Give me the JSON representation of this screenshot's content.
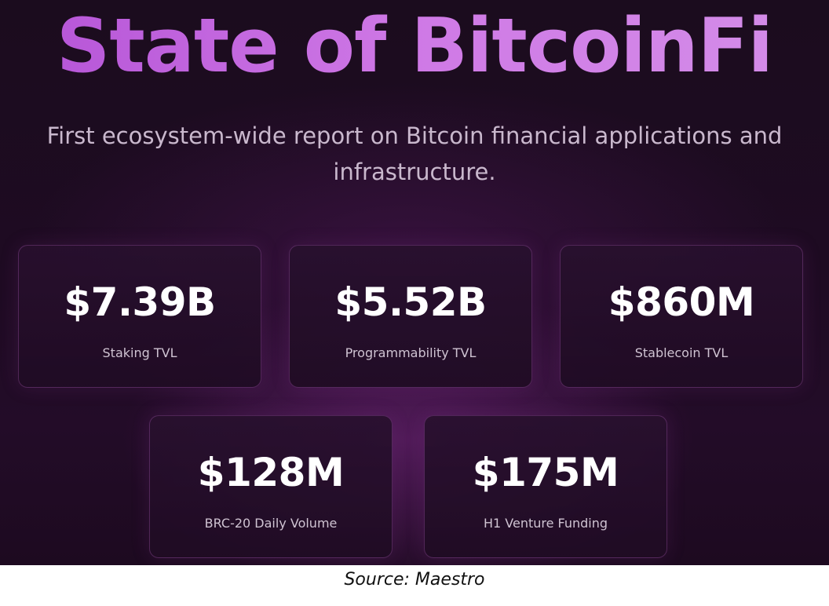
{
  "header": {
    "title": "State of BitcoinFi",
    "subtitle": "First ecosystem-wide report on Bitcoin financial applications and infrastructure."
  },
  "stats": [
    {
      "value": "$7.39B",
      "label": "Staking TVL"
    },
    {
      "value": "$5.52B",
      "label": "Programmability TVL"
    },
    {
      "value": "$860M",
      "label": "Stablecoin TVL"
    },
    {
      "value": "$128M",
      "label": "BRC-20 Daily Volume"
    },
    {
      "value": "$175M",
      "label": "H1 Venture Funding"
    }
  ],
  "footer": {
    "source": "Source: Maestro"
  },
  "colors": {
    "title_gradient_start": "#b452d6",
    "title_gradient_end": "#d48ee8",
    "background": "#1e0b22",
    "card_text": "#ffffff",
    "label_text": "#cfc3d2"
  }
}
